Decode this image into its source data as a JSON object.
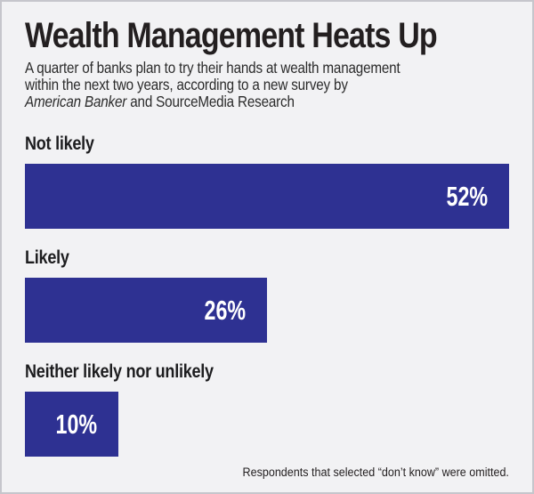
{
  "page": {
    "background_color": "#f2f2f4",
    "border_color": "#c6c6cc",
    "text_color": "#231f20"
  },
  "header": {
    "title": "Wealth Management Heats Up",
    "subtitle_line1": "A quarter of banks plan to try their hands at wealth management",
    "subtitle_line2": "within the next two years, according to a new survey by",
    "subtitle_line3_italic": "American Banker",
    "subtitle_line3_rest": " and SourceMedia Research"
  },
  "chart_data": {
    "type": "bar",
    "orientation": "horizontal",
    "title": "Wealth Management Heats Up",
    "categories": [
      "Not likely",
      "Likely",
      "Neither likely nor unlikely"
    ],
    "values": [
      52,
      26,
      10
    ],
    "value_labels": [
      "52%",
      "26%",
      "10%"
    ],
    "unit": "%",
    "xlim": [
      0,
      52
    ],
    "bar_color": "#2e3192",
    "value_label_color": "#ffffff",
    "grid": false,
    "legend": false,
    "value_label_position": "inside-right"
  },
  "footer": {
    "note": "Respondents that selected “don’t know” were omitted."
  }
}
